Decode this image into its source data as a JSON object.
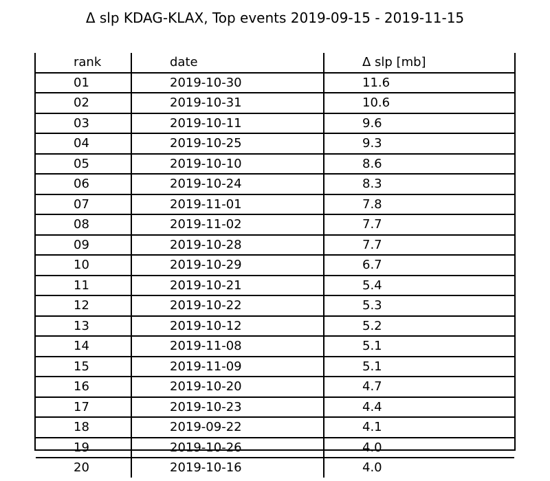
{
  "chart_data": {
    "type": "table",
    "title": "Δ slp KDAG-KLAX, Top events 2019-09-15 - 2019-11-15",
    "columns": [
      "rank",
      "date",
      "Δ slp [mb]"
    ],
    "rows": [
      {
        "rank": "01",
        "date": "2019-10-30",
        "dslp": "11.6"
      },
      {
        "rank": "02",
        "date": "2019-10-31",
        "dslp": "10.6"
      },
      {
        "rank": "03",
        "date": "2019-10-11",
        "dslp": "9.6"
      },
      {
        "rank": "04",
        "date": "2019-10-25",
        "dslp": "9.3"
      },
      {
        "rank": "05",
        "date": "2019-10-10",
        "dslp": "8.6"
      },
      {
        "rank": "06",
        "date": "2019-10-24",
        "dslp": "8.3"
      },
      {
        "rank": "07",
        "date": "2019-11-01",
        "dslp": "7.8"
      },
      {
        "rank": "08",
        "date": "2019-11-02",
        "dslp": "7.7"
      },
      {
        "rank": "09",
        "date": "2019-10-28",
        "dslp": "7.7"
      },
      {
        "rank": "10",
        "date": "2019-10-29",
        "dslp": "6.7"
      },
      {
        "rank": "11",
        "date": "2019-10-21",
        "dslp": "5.4"
      },
      {
        "rank": "12",
        "date": "2019-10-22",
        "dslp": "5.3"
      },
      {
        "rank": "13",
        "date": "2019-10-12",
        "dslp": "5.2"
      },
      {
        "rank": "14",
        "date": "2019-11-08",
        "dslp": "5.1"
      },
      {
        "rank": "15",
        "date": "2019-11-09",
        "dslp": "5.1"
      },
      {
        "rank": "16",
        "date": "2019-10-20",
        "dslp": "4.7"
      },
      {
        "rank": "17",
        "date": "2019-10-23",
        "dslp": "4.4"
      },
      {
        "rank": "18",
        "date": "2019-09-22",
        "dslp": "4.1"
      },
      {
        "rank": "19",
        "date": "2019-10-26",
        "dslp": "4.0"
      },
      {
        "rank": "20",
        "date": "2019-10-16",
        "dslp": "4.0"
      }
    ]
  }
}
